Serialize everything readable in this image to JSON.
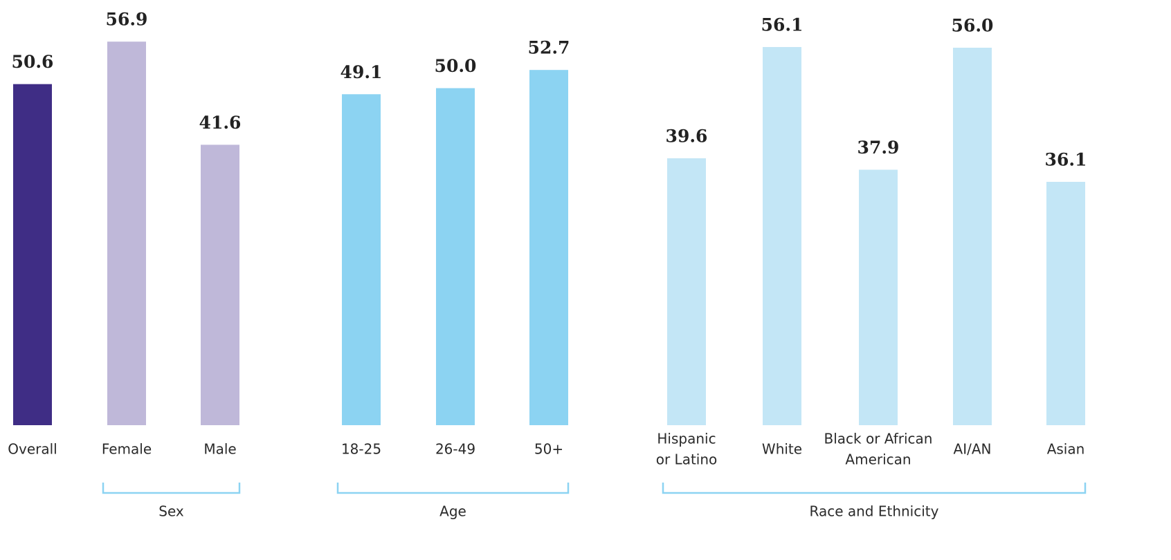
{
  "chart_data": {
    "type": "bar",
    "groups": [
      {
        "categories": [
          [
            "Overall"
          ]
        ],
        "values": [
          50.6
        ],
        "value_labels": [
          "50.6"
        ],
        "color": "#3f2d85"
      },
      {
        "name": "Sex",
        "categories": [
          [
            "Female"
          ],
          [
            "Male"
          ]
        ],
        "values": [
          56.9,
          41.6
        ],
        "value_labels": [
          "56.9",
          "41.6"
        ],
        "color": "#bfb8d9"
      },
      {
        "name": "Age",
        "categories": [
          [
            "18-25"
          ],
          [
            "26-49"
          ],
          [
            "50+"
          ]
        ],
        "values": [
          49.1,
          50.0,
          52.7
        ],
        "value_labels": [
          "49.1",
          "50.0",
          "52.7"
        ],
        "color": "#8cd3f2"
      },
      {
        "name": "Race and Ethnicity",
        "categories": [
          [
            "Hispanic",
            "or Latino"
          ],
          [
            "White"
          ],
          [
            "Black or African",
            "American"
          ],
          [
            "AI/AN"
          ],
          [
            "Asian"
          ]
        ],
        "values": [
          39.6,
          56.1,
          37.9,
          56.0,
          36.1
        ],
        "value_labels": [
          "39.6",
          "56.1",
          "37.9",
          "56.0",
          "36.1"
        ],
        "color": "#c3e6f6"
      }
    ]
  }
}
